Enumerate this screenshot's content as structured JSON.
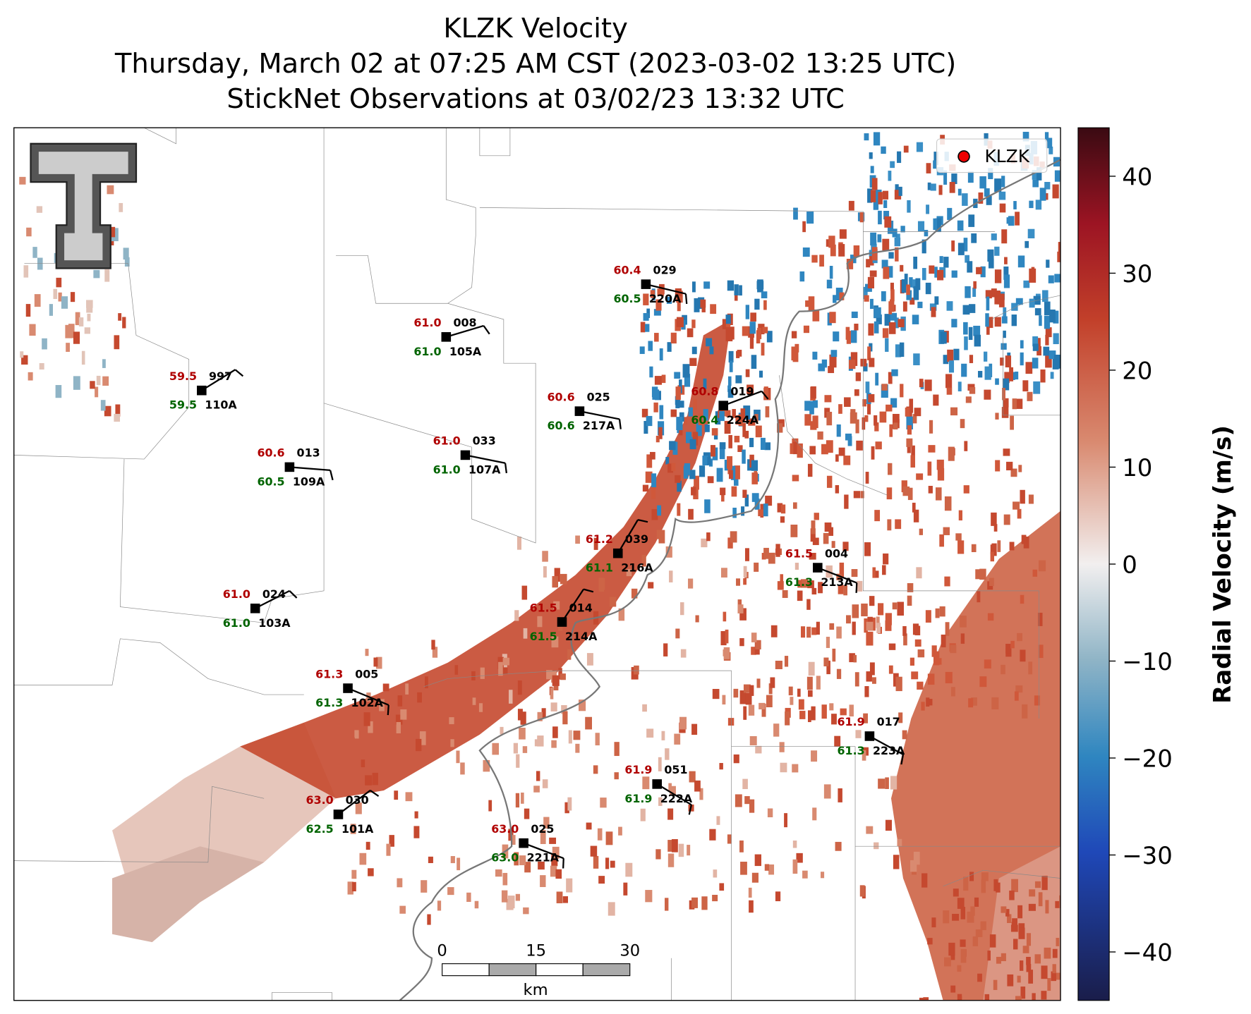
{
  "header": {
    "title": [
      "KLZK Velocity",
      "Thursday, March 02 at 07:25 AM CST (2023-03-02 13:25 UTC)",
      "StickNet Observations at 03/02/23 13:32 UTC"
    ]
  },
  "legend": {
    "label": "KLZK"
  },
  "colorbar": {
    "label": "Radial Velocity (m/s)",
    "lim": [
      -45,
      45
    ],
    "ticks": [
      40,
      30,
      20,
      10,
      0,
      {
        "value": -10,
        "label": "−10"
      },
      {
        "value": -20,
        "label": "−20"
      },
      {
        "value": -30,
        "label": "−30"
      },
      {
        "value": -40,
        "label": "−40"
      }
    ]
  },
  "scalebar": {
    "ticks": [
      0,
      15,
      30
    ],
    "unit": "km"
  },
  "stations": [
    {
      "temperature": "60.4",
      "pressure": "029",
      "dewpoint": "60.5",
      "id": "220A"
    },
    {
      "temperature": "61.0",
      "pressure": "008",
      "dewpoint": "61.0",
      "id": "105A"
    },
    {
      "temperature": "59.5",
      "pressure": "997",
      "dewpoint": "59.5",
      "id": "110A"
    },
    {
      "temperature": "60.6",
      "pressure": "025",
      "dewpoint": "60.6",
      "id": "217A"
    },
    {
      "temperature": "60.8",
      "pressure": "019",
      "dewpoint": "60.4",
      "id": "224A"
    },
    {
      "temperature": "60.6",
      "pressure": "013",
      "dewpoint": "60.5",
      "id": "109A"
    },
    {
      "temperature": "61.0",
      "pressure": "033",
      "dewpoint": "61.0",
      "id": "107A"
    },
    {
      "temperature": "61.2",
      "pressure": "039",
      "dewpoint": "61.1",
      "id": "216A"
    },
    {
      "temperature": "61.5",
      "pressure": "004",
      "dewpoint": "61.3",
      "id": "213A"
    },
    {
      "temperature": "61.0",
      "pressure": "024",
      "dewpoint": "61.0",
      "id": "103A"
    },
    {
      "temperature": "61.5",
      "pressure": "014",
      "dewpoint": "61.5",
      "id": "214A"
    },
    {
      "temperature": "61.3",
      "pressure": "005",
      "dewpoint": "61.3",
      "id": "102A"
    },
    {
      "temperature": "61.9",
      "pressure": "017",
      "dewpoint": "61.3",
      "id": "223A"
    },
    {
      "temperature": "61.9",
      "pressure": "051",
      "dewpoint": "61.9",
      "id": "222A"
    },
    {
      "temperature": "63.0",
      "pressure": "030",
      "dewpoint": "62.5",
      "id": "101A"
    },
    {
      "temperature": "63.0",
      "pressure": "025",
      "dewpoint": "63.0",
      "id": "221A"
    }
  ]
}
